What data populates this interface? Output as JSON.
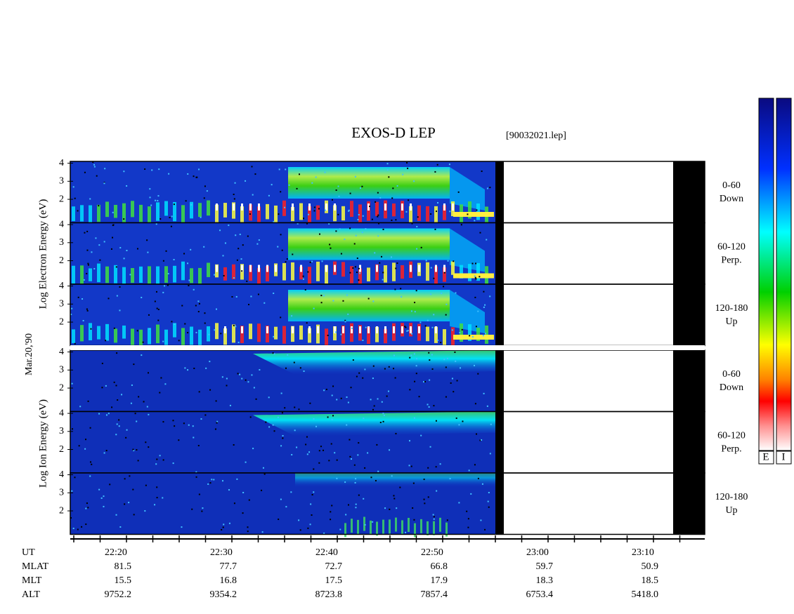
{
  "title": "EXOS-D LEP",
  "file": "[90032021.lep]",
  "date": "Mar.20,'90",
  "electron_axis_label": "Log Electron Energy (eV)",
  "ion_axis_label": "Log Ion Energy (eV)",
  "energy_range": [
    0.7,
    4.1
  ],
  "energy_ticks": [
    2,
    3,
    4
  ],
  "panels": [
    {
      "angle": "0-60",
      "direction": "Down"
    },
    {
      "angle": "60-120",
      "direction": "Perp."
    },
    {
      "angle": "120-180",
      "direction": "Up"
    },
    {
      "angle": "0-60",
      "direction": "Down"
    },
    {
      "angle": "60-120",
      "direction": "Perp."
    },
    {
      "angle": "120-180",
      "direction": "Up"
    }
  ],
  "ephemeris": {
    "labels": [
      "UT",
      "MLAT",
      "MLT",
      "ALT"
    ],
    "columns": [
      [
        "22:20",
        "81.5",
        "15.5",
        "9752.2"
      ],
      [
        "22:30",
        "77.7",
        "16.8",
        "9354.2"
      ],
      [
        "22:40",
        "72.7",
        "17.5",
        "8723.8"
      ],
      [
        "22:50",
        "66.8",
        "17.9",
        "7857.4"
      ],
      [
        "23:00",
        "59.7",
        "18.3",
        "6753.4"
      ],
      [
        "23:10",
        "50.9",
        "18.5",
        "5418.0"
      ]
    ]
  },
  "colorbar_labels": [
    "E",
    "I"
  ]
}
